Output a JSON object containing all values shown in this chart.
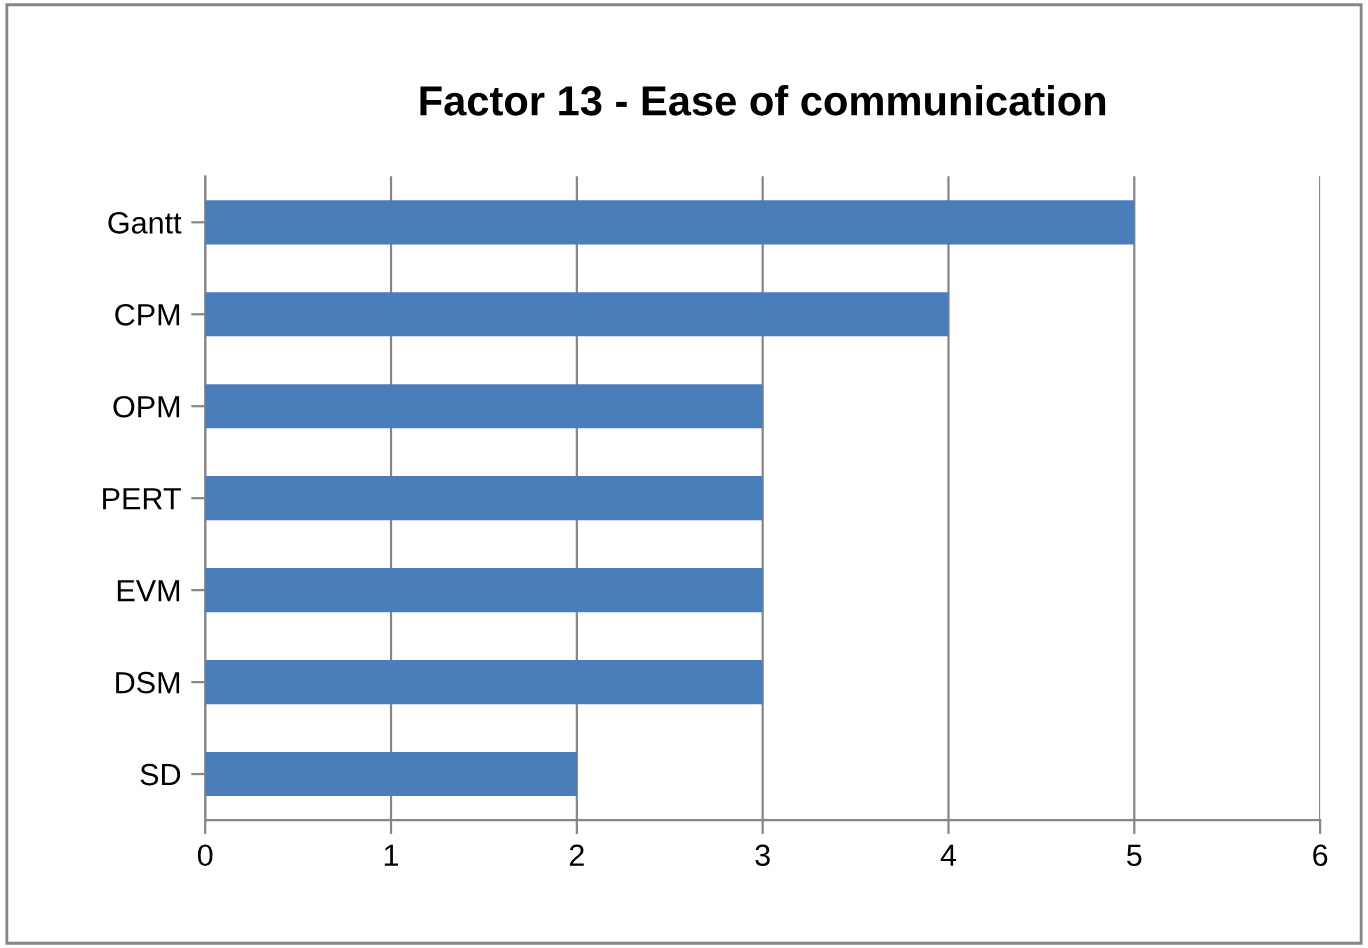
{
  "chart_data": {
    "type": "bar",
    "orientation": "horizontal",
    "title": "Factor 13 - Ease of communication",
    "categories": [
      "Gantt",
      "CPM",
      "OPM",
      "PERT",
      "EVM",
      "DSM",
      "SD"
    ],
    "values": [
      5,
      4,
      3,
      3,
      3,
      3,
      2
    ],
    "color": "#4a7ebb",
    "xlim": [
      0,
      6
    ],
    "xticks": [
      0,
      1,
      2,
      3,
      4,
      5,
      6
    ],
    "grid": "x",
    "legend": false
  }
}
